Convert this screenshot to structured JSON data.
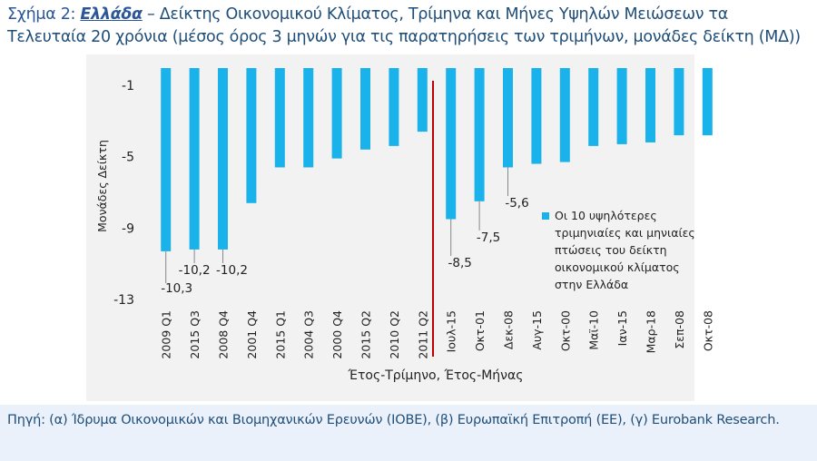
{
  "title": {
    "figure_label": "Σχήμα 2:",
    "country": "Ελλάδα",
    "text": " – Δείκτης Οικονομικού Κλίματος, Τρίμηνα και Μήνες Υψηλών Μειώσεων τα Τελευταία 20 χρόνια (μέσος όρος 3 μηνών για τις παρατηρήσεις των τριμήνων, μονάδες δείκτη (ΜΔ))"
  },
  "source": "Πηγή: (α) Ίδρυμα Οικονομικών και Βιομηχανικών Ερευνών (ΙΟΒΕ), (β) Ευρωπαϊκή Επιτροπή (ΕΕ), (γ) Eurobank Research.",
  "colors": {
    "bar": "#1ab2ea",
    "divider": "#c00000",
    "text": "#222222"
  },
  "chart_data": {
    "type": "bar",
    "title": "",
    "xlabel": "Έτος-Τρίμηνο, Έτος-Μήνας",
    "ylabel": "Μονάδες Δείκτη",
    "ylim": [
      -13,
      0
    ],
    "yticks": [
      -1,
      -5,
      -9,
      -13
    ],
    "ytick_labels": [
      "-1",
      "-5",
      "-9",
      "-13"
    ],
    "categories": [
      "2009 Q1",
      "2015 Q3",
      "2008 Q4",
      "2001 Q4",
      "2015 Q1",
      "2004 Q3",
      "2000 Q4",
      "2015 Q2",
      "2010 Q2",
      "2011 Q2",
      "Ιουλ-15",
      "Οκτ-01",
      "Δεκ-08",
      "Αυγ-15",
      "Οκτ-00",
      "Μαϊ-10",
      "Ιαν-15",
      "Μαρ-18",
      "Σεπ-08",
      "Οκτ-08"
    ],
    "series": [
      {
        "name": "Οι 10 υψηλότερες τριμηνιαίες και μηνιαίες πτώσεις του δείκτη οικονομικού κλίματος στην Ελλάδα",
        "values": [
          -10.3,
          -10.2,
          -10.2,
          -7.6,
          -5.6,
          -5.6,
          -5.1,
          -4.6,
          -4.4,
          -3.6,
          -8.5,
          -7.5,
          -5.6,
          -5.4,
          -5.3,
          -4.4,
          -4.3,
          -4.2,
          -3.8,
          -3.8
        ]
      }
    ],
    "data_labels": [
      {
        "index": 0,
        "text": "-10,3"
      },
      {
        "index": 1,
        "text": "-10,2"
      },
      {
        "index": 2,
        "text": "-10,2"
      },
      {
        "index": 10,
        "text": "-8,5"
      },
      {
        "index": 11,
        "text": "-7,5"
      },
      {
        "index": 12,
        "text": "-5,6"
      }
    ],
    "divider_after_index": 9,
    "legend_position": "right"
  }
}
